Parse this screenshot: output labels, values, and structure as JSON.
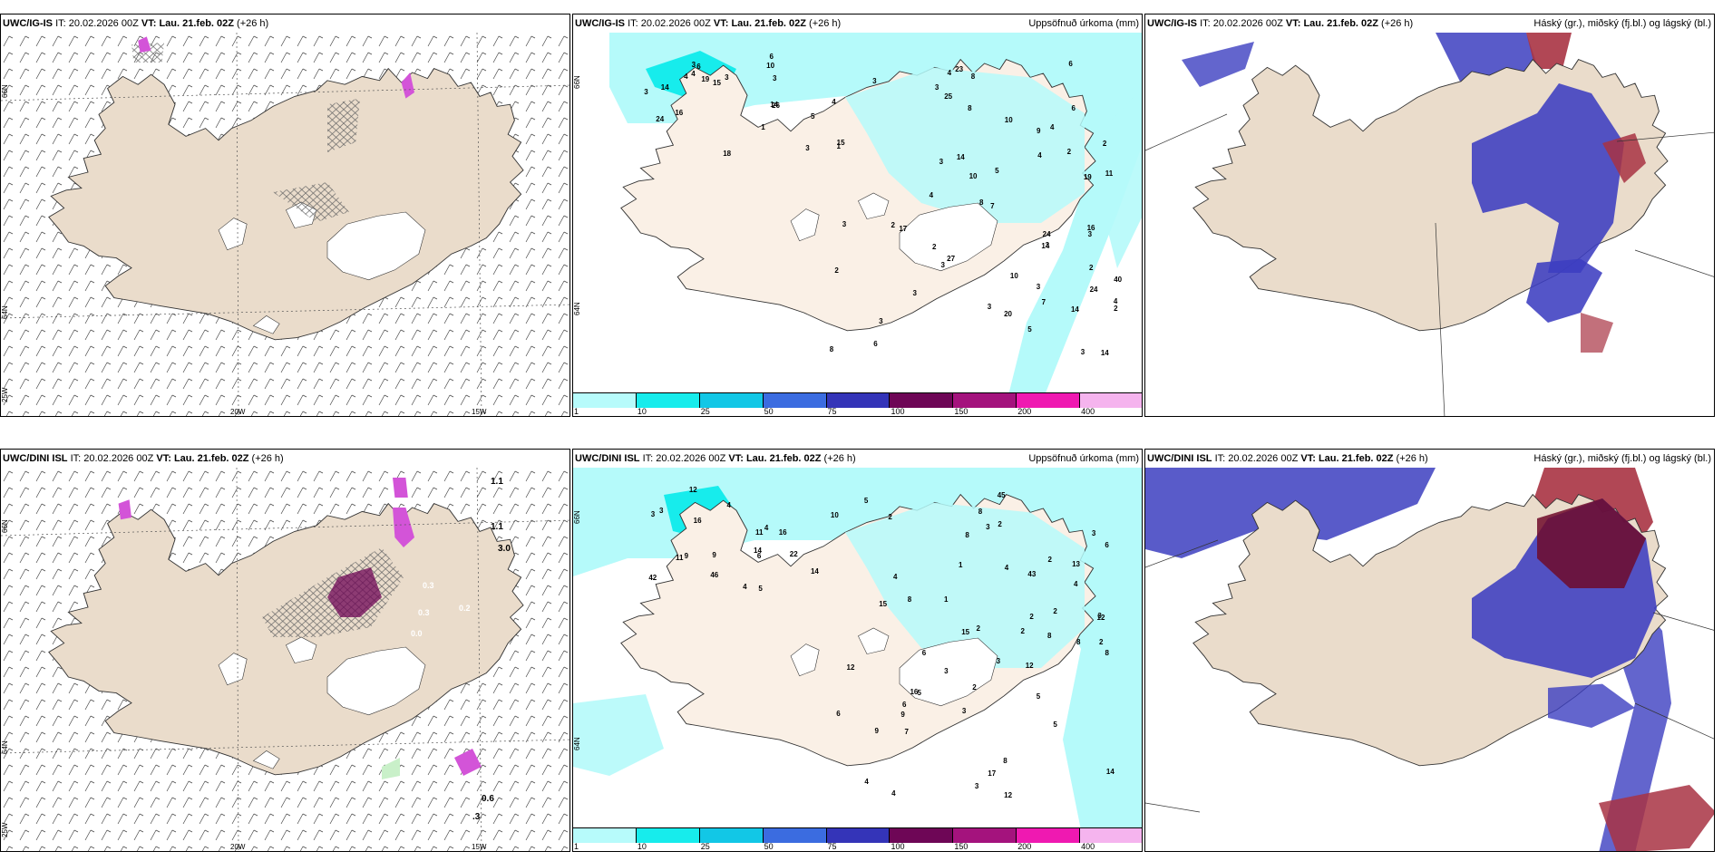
{
  "panels": [
    {
      "model": "UWC/IG-IS",
      "it_label": "IT:",
      "it": "20.02.2026 00Z",
      "vt_label": "VT:",
      "vt": "Lau. 21.feb. 02Z",
      "lead": "(+26 h)",
      "right_title": "",
      "axis": {
        "lat_upper": "66N",
        "lat_lower": "64N",
        "lon_corner": "25W",
        "lon_left": "20W",
        "lon_right": "15W"
      }
    },
    {
      "model": "UWC/IG-IS",
      "it_label": "IT:",
      "it": "20.02.2026 00Z",
      "vt_label": "VT:",
      "vt": "Lau. 21.feb. 02Z",
      "lead": "(+26 h)",
      "right_title": "Uppsöfnuð úrkoma (mm)",
      "axis": {
        "lat_upper": "66N",
        "lat_lower": "64N"
      }
    },
    {
      "model": "UWC/IG-IS",
      "it_label": "IT:",
      "it": "20.02.2026 00Z",
      "vt_label": "VT:",
      "vt": "Lau. 21.feb. 02Z",
      "lead": "(+26 h)",
      "right_title": "Háský (gr.), miðský (fj.bl.) og lágský (bl.)"
    },
    {
      "model": "UWC/DINI ISL",
      "it_label": "IT:",
      "it": "20.02.2026 00Z",
      "vt_label": "VT:",
      "vt": "Lau. 21.feb. 02Z",
      "lead": "(+26 h)",
      "right_title": "",
      "axis": {
        "lat_upper": "66N",
        "lat_lower": "64N",
        "lon_corner": "25W",
        "lon_left": "20W",
        "lon_right": "15W"
      },
      "labels": [
        "1.1",
        "1.1",
        "3.0",
        "0.3",
        "0.3",
        "0.2",
        "0.0",
        "0.6",
        ".3"
      ]
    },
    {
      "model": "UWC/DINI ISL",
      "it_label": "IT:",
      "it": "20.02.2026 00Z",
      "vt_label": "VT:",
      "vt": "Lau. 21.feb. 02Z",
      "lead": "(+26 h)",
      "right_title": "Uppsöfnuð úrkoma (mm)",
      "axis": {
        "lat_upper": "66N",
        "lat_lower": "64N"
      }
    },
    {
      "model": "UWC/DINI ISL",
      "it_label": "IT:",
      "it": "20.02.2026 00Z",
      "vt_label": "VT:",
      "vt": "Lau. 21.feb. 02Z",
      "lead": "(+26 h)",
      "right_title": "Háský (gr.), miðský (fj.bl.) og lágský (bl.)"
    }
  ],
  "precip_values_top": [
    "18",
    "10",
    "3",
    "1",
    "5",
    "14",
    "6",
    "3",
    "24",
    "26",
    "15",
    "14",
    "4",
    "3",
    "19",
    "16",
    "6",
    "4",
    "3",
    "3",
    "2",
    "3",
    "7",
    "8",
    "8",
    "10",
    "27",
    "15",
    "5",
    "4",
    "6",
    "7",
    "3",
    "9",
    "14",
    "23",
    "3",
    "1",
    "2",
    "8",
    "6",
    "8",
    "4",
    "3",
    "3",
    "40",
    "25",
    "24",
    "4",
    "6",
    "4",
    "3",
    "2",
    "17",
    "14",
    "5",
    "14",
    "19",
    "4",
    "2",
    "2",
    "3",
    "2",
    "20",
    "16",
    "10",
    "11",
    "10",
    "14",
    "24",
    "3",
    "3",
    "3",
    "4",
    "3",
    "2",
    "3"
  ],
  "precip_values_bottom": [
    "3",
    "11",
    "22",
    "14",
    "4",
    "14",
    "16",
    "46",
    "42",
    "9",
    "11",
    "4",
    "12",
    "16",
    "4",
    "9",
    "3",
    "6",
    "5",
    "10",
    "12",
    "4",
    "2",
    "5",
    "4",
    "8",
    "15",
    "13",
    "16",
    "17",
    "6",
    "43",
    "45",
    "3",
    "5",
    "12",
    "3",
    "8",
    "6",
    "5",
    "8",
    "14",
    "4",
    "5",
    "8",
    "2",
    "3",
    "8",
    "6",
    "7",
    "9",
    "4",
    "9",
    "4",
    "8",
    "8",
    "2",
    "6",
    "12",
    "15",
    "2",
    "3",
    "1",
    "2",
    "3",
    "2",
    "3",
    "3",
    "2",
    "2",
    "12",
    "2",
    "1"
  ],
  "colorbar": {
    "ticks": [
      "1",
      "10",
      "25",
      "50",
      "75",
      "100",
      "150",
      "200",
      "400"
    ],
    "colors": [
      "#b7fbfb",
      "#17ecec",
      "#12c7e6",
      "#3b6ce0",
      "#3434b8",
      "#6e0656",
      "#a4137d",
      "#ef19b1",
      "#f5b4ee"
    ]
  },
  "colors": {
    "land": "#eadccb",
    "land_bright": "#faf0e6",
    "precip": "#b5fafa",
    "cloud_low": "#3c3ec0",
    "cloud_high": "#a83343",
    "snow": "#d354d8"
  }
}
